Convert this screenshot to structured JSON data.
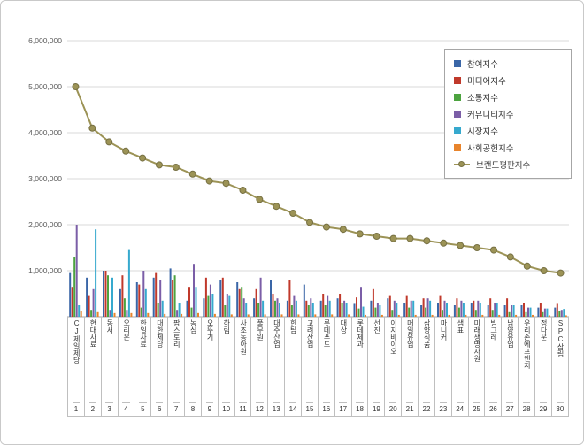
{
  "chart_data": {
    "type": "bar",
    "combo": "bar+line",
    "title": "",
    "xlabel": "",
    "ylabel": "",
    "ylim": [
      0,
      6000000
    ],
    "ytick_step": 1000000,
    "ytick_labels": [
      "1,000,000",
      "2,000,000",
      "3,000,000",
      "4,000,000",
      "5,000,000",
      "6,000,000"
    ],
    "grid": true,
    "legend_position": "top-right",
    "categories": [
      "CJ제일제당",
      "현대사료",
      "동서",
      "오리온",
      "한일사료",
      "대한제당",
      "팜스토리",
      "농심",
      "오뚜기",
      "하림",
      "사조동아원",
      "풀무원",
      "대주산업",
      "한탑",
      "고려산업",
      "롯데푸드",
      "대상",
      "롯데제과",
      "선진",
      "이지바이오",
      "매일유업",
      "삼양식품",
      "마니커",
      "샘표",
      "미래생명자원",
      "빙그레",
      "남양유업",
      "우리손에프앤지",
      "정다운",
      "SPC삼립"
    ],
    "rank_labels": [
      "1",
      "2",
      "3",
      "4",
      "5",
      "6",
      "7",
      "8",
      "9",
      "10",
      "11",
      "12",
      "13",
      "14",
      "15",
      "16",
      "17",
      "18",
      "19",
      "20",
      "21",
      "22",
      "23",
      "24",
      "25",
      "26",
      "27",
      "28",
      "29",
      "30"
    ],
    "series": [
      {
        "name": "참여지수",
        "type": "bar",
        "color": "#3A66A7",
        "values": [
          950000,
          850000,
          1000000,
          600000,
          750000,
          850000,
          1050000,
          350000,
          400000,
          800000,
          750000,
          400000,
          800000,
          350000,
          700000,
          350000,
          400000,
          280000,
          350000,
          400000,
          300000,
          250000,
          300000,
          250000,
          300000,
          250000,
          250000,
          250000,
          200000,
          200000
        ]
      },
      {
        "name": "미디어지수",
        "type": "bar",
        "color": "#C0392B",
        "values": [
          650000,
          450000,
          1000000,
          900000,
          700000,
          950000,
          800000,
          650000,
          850000,
          850000,
          600000,
          600000,
          500000,
          800000,
          350000,
          500000,
          500000,
          420000,
          600000,
          450000,
          450000,
          400000,
          450000,
          400000,
          350000,
          400000,
          400000,
          300000,
          300000,
          280000
        ]
      },
      {
        "name": "소통지수",
        "type": "bar",
        "color": "#4CA33F",
        "values": [
          1300000,
          150000,
          900000,
          400000,
          200000,
          300000,
          900000,
          200000,
          450000,
          250000,
          650000,
          300000,
          350000,
          250000,
          250000,
          250000,
          300000,
          180000,
          200000,
          150000,
          200000,
          200000,
          150000,
          200000,
          150000,
          150000,
          100000,
          100000,
          100000,
          120000
        ]
      },
      {
        "name": "커뮤니티지수",
        "type": "bar",
        "color": "#7B5EA7",
        "values": [
          2000000,
          600000,
          150000,
          150000,
          1000000,
          800000,
          150000,
          1150000,
          700000,
          500000,
          400000,
          850000,
          400000,
          450000,
          400000,
          450000,
          350000,
          650000,
          300000,
          350000,
          350000,
          400000,
          350000,
          350000,
          350000,
          300000,
          250000,
          200000,
          180000,
          150000
        ]
      },
      {
        "name": "시장지수",
        "type": "bar",
        "color": "#36A9CE",
        "values": [
          250000,
          1900000,
          850000,
          1450000,
          600000,
          350000,
          300000,
          650000,
          500000,
          450000,
          300000,
          350000,
          300000,
          350000,
          300000,
          350000,
          300000,
          220000,
          250000,
          300000,
          350000,
          350000,
          300000,
          300000,
          300000,
          300000,
          250000,
          200000,
          180000,
          170000
        ]
      },
      {
        "name": "사회공헌지수",
        "type": "bar",
        "color": "#E8842C",
        "values": [
          120000,
          100000,
          80000,
          80000,
          80000,
          60000,
          60000,
          80000,
          60000,
          50000,
          50000,
          50000,
          50000,
          50000,
          50000,
          50000,
          50000,
          40000,
          40000,
          40000,
          40000,
          40000,
          40000,
          40000,
          40000,
          40000,
          40000,
          40000,
          30000,
          30000
        ]
      },
      {
        "name": "브랜드평판지수",
        "type": "line",
        "color": "#9C9356",
        "marker_stroke": "#767043",
        "values": [
          5000000,
          4100000,
          3800000,
          3600000,
          3450000,
          3300000,
          3250000,
          3100000,
          2950000,
          2900000,
          2750000,
          2550000,
          2400000,
          2250000,
          2050000,
          1950000,
          1900000,
          1800000,
          1750000,
          1700000,
          1700000,
          1650000,
          1600000,
          1550000,
          1500000,
          1450000,
          1300000,
          1100000,
          1000000,
          950000
        ]
      }
    ]
  },
  "colors": {
    "background": "#FFFFFF",
    "outer_border": "#C9C9C9",
    "grid": "#D9D9D9",
    "axis": "#A6A6A6",
    "cell_border": "#BFBFBF",
    "text": "#595959",
    "legend_border": "#A6A6A6"
  }
}
